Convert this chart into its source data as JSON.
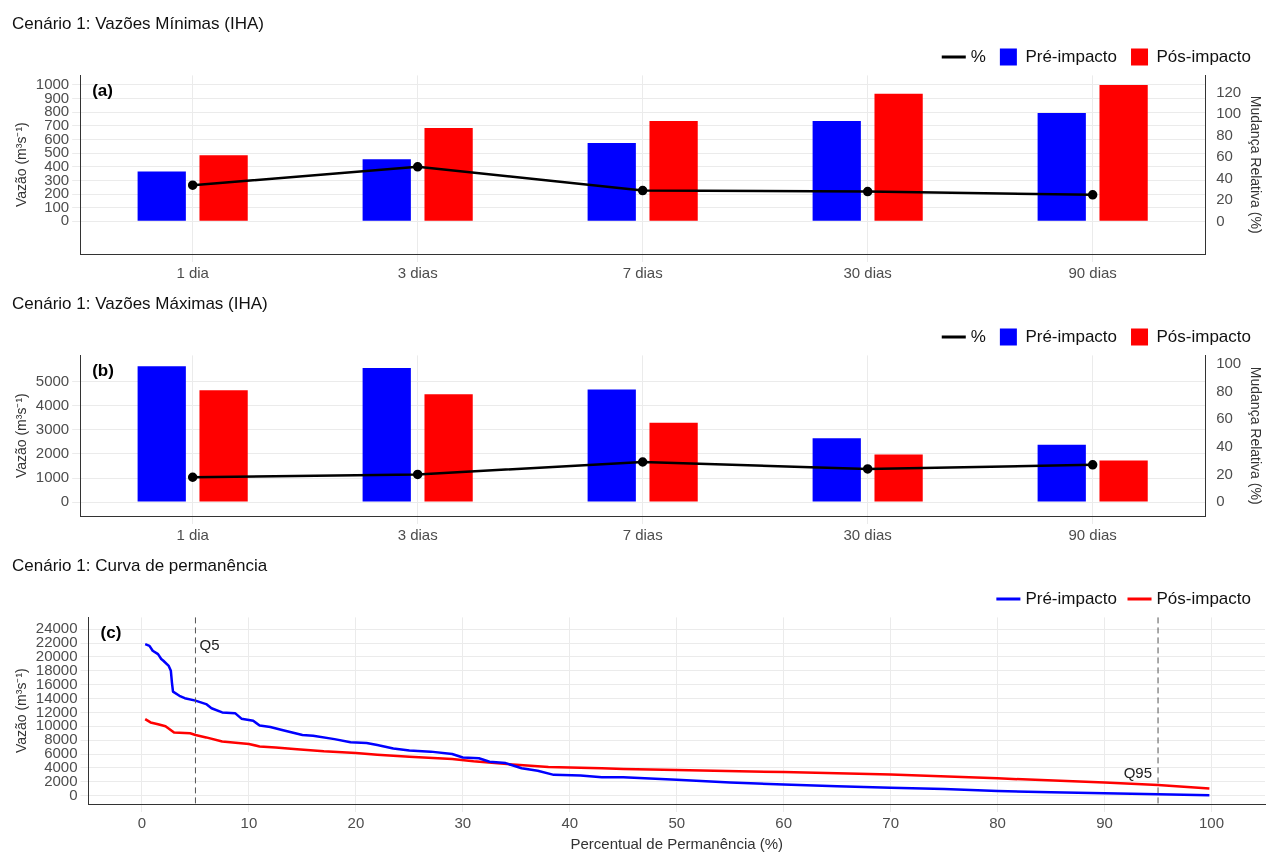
{
  "chart_data": [
    {
      "type": "bar",
      "title": "Cenário 1: Vazões Mínimas (IHA)",
      "ylabel": "Vazão (m³s⁻¹)",
      "y2label": "Mudança Relativa (%)",
      "categories": [
        "1 dia",
        "3 dias",
        "7 dias",
        "30 dias",
        "90 dias"
      ],
      "series": [
        {
          "name": "Pré-impacto",
          "color": "#0000ff",
          "values": [
            365,
            455,
            575,
            735,
            795
          ]
        },
        {
          "name": "Pós-impacto",
          "color": "#ff0000",
          "values": [
            485,
            685,
            735,
            935,
            1000
          ]
        },
        {
          "name": "%",
          "type": "line",
          "axis": "y2",
          "color": "#000000",
          "values": [
            34,
            51,
            29,
            28,
            25
          ]
        }
      ],
      "ylim": [
        -240,
        1070
      ],
      "yticks": [
        0,
        100,
        200,
        300,
        400,
        500,
        600,
        700,
        800,
        900,
        1000
      ],
      "y2lim": [
        -30,
        136
      ],
      "y2ticks": [
        0,
        20,
        40,
        60,
        80,
        100,
        120
      ],
      "grid": true,
      "legend": "top right",
      "marker": "circle",
      "line_style": "solid",
      "annotations": [
        "(a)"
      ]
    },
    {
      "type": "bar",
      "title": "Cenário 1: Vazões Máximas (IHA)",
      "ylabel": "Vazão (m³s⁻¹)",
      "y2label": "Mudança Relativa (%)",
      "categories": [
        "1 dia",
        "3 dias",
        "7 dias",
        "30 dias",
        "90 dias"
      ],
      "series": [
        {
          "name": "Pré-impacto",
          "color": "#0000ff",
          "values": [
            5650,
            5580,
            4680,
            2650,
            2380
          ]
        },
        {
          "name": "Pós-impacto",
          "color": "#ff0000",
          "values": [
            4650,
            4480,
            3300,
            1980,
            1730
          ]
        },
        {
          "name": "%",
          "type": "line",
          "axis": "y2",
          "color": "#000000",
          "values": [
            18,
            20,
            29,
            24,
            27
          ]
        }
      ],
      "ylim": [
        -580,
        6100
      ],
      "yticks": [
        0,
        1000,
        2000,
        3000,
        4000,
        5000
      ],
      "y2lim": [
        -10,
        106
      ],
      "y2ticks": [
        0,
        20,
        40,
        60,
        80,
        100
      ],
      "grid": true,
      "legend": "top right",
      "marker": "circle",
      "line_style": "solid",
      "annotations": [
        "(b)"
      ]
    },
    {
      "type": "line",
      "title": "Cenário 1: Curva de permanência",
      "xlabel": "Percentual de Permanência (%)",
      "ylabel": "Vazão (m³s⁻¹)",
      "series": [
        {
          "name": "Pré-impacto",
          "color": "#0000ff",
          "x": [
            0.3,
            0.7,
            1.0,
            1.5,
            1.8,
            2.0,
            2.5,
            2.7,
            2.8,
            2.9,
            3.5,
            4.0,
            5,
            6,
            6.5,
            7.5,
            8.7,
            9.3,
            10.4,
            11.0,
            12,
            13,
            15,
            16,
            18,
            19.5,
            21,
            22,
            23.5,
            25,
            27,
            29,
            30,
            31.5,
            32.5,
            34,
            35.5,
            37,
            38.5,
            41,
            43,
            45,
            50,
            55,
            60,
            65,
            70,
            75,
            80,
            85,
            90,
            95,
            99.8
          ],
          "values": [
            21840,
            21600,
            20900,
            20400,
            19700,
            19450,
            18700,
            18000,
            16300,
            15000,
            14400,
            14050,
            13700,
            13200,
            12600,
            12000,
            11900,
            11100,
            10800,
            10100,
            9900,
            9500,
            8750,
            8650,
            8150,
            7700,
            7600,
            7300,
            6800,
            6500,
            6350,
            6000,
            5500,
            5400,
            4900,
            4700,
            3950,
            3600,
            3000,
            2900,
            2650,
            2650,
            2300,
            1900,
            1600,
            1350,
            1150,
            960,
            670,
            480,
            340,
            190,
            50
          ]
        },
        {
          "name": "Pós-impacto",
          "color": "#ff0000",
          "x": [
            0.3,
            0.8,
            1.5,
            2.2,
            3.0,
            4.5,
            5,
            6,
            7.5,
            9,
            10,
            11,
            12.5,
            14.5,
            17,
            20,
            22,
            25,
            29,
            31,
            33,
            35,
            38,
            43,
            45,
            50,
            60,
            70,
            80,
            90,
            95,
            99.8
          ],
          "values": [
            11040,
            10560,
            10300,
            10000,
            9100,
            9000,
            8750,
            8400,
            7800,
            7600,
            7450,
            7100,
            6950,
            6700,
            6400,
            6150,
            5900,
            5600,
            5300,
            4950,
            4700,
            4450,
            4150,
            3950,
            3850,
            3700,
            3400,
            3050,
            2500,
            1900,
            1550,
            1050
          ]
        }
      ],
      "xlim": [
        -5,
        105
      ],
      "xticks": [
        0,
        10,
        20,
        30,
        40,
        50,
        60,
        70,
        80,
        90,
        100
      ],
      "ylim": [
        -1200,
        25700
      ],
      "yticks": [
        0,
        2000,
        4000,
        6000,
        8000,
        10000,
        12000,
        14000,
        16000,
        18000,
        20000,
        22000,
        24000
      ],
      "ref_lines": [
        {
          "axis": "x",
          "value": 5,
          "label": "Q5",
          "line_style": "dashed",
          "color": "#555555"
        },
        {
          "axis": "x",
          "value": 95,
          "label": "Q95",
          "line_style": "dashed",
          "color": "#555555"
        }
      ],
      "grid": true,
      "legend": "top right",
      "marker": "none",
      "line_style": "solid",
      "annotations": [
        "(c)"
      ]
    }
  ]
}
